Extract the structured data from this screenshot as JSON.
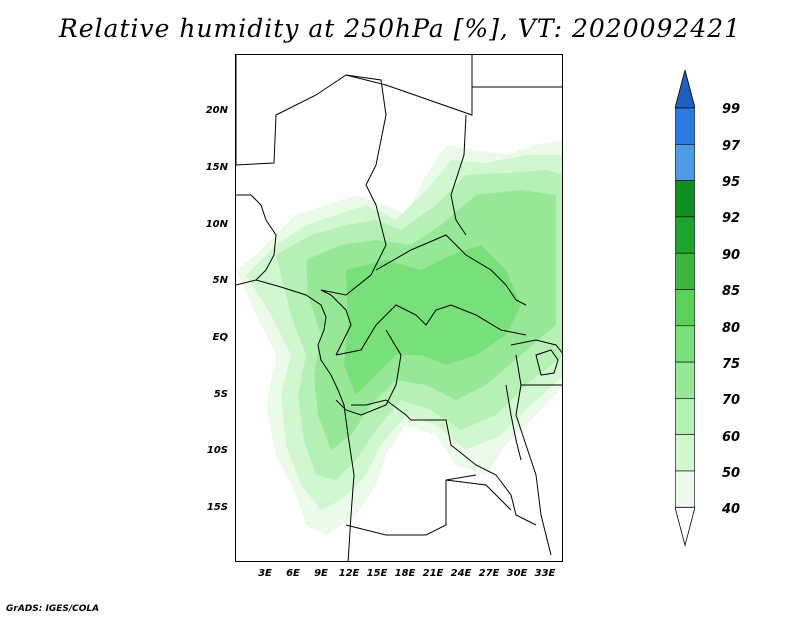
{
  "title": "Relative humidity at 250hPa [%], VT: 2020092421",
  "credit": "GrADS: IGES/COLA",
  "map": {
    "lon_range": [
      0,
      35
    ],
    "lat_range": [
      -20,
      25
    ],
    "lat_labels": [
      "20N",
      "15N",
      "10N",
      "5N",
      "EQ",
      "5S",
      "10S",
      "15S"
    ],
    "lat_values": [
      20,
      15,
      10,
      5,
      0,
      -5,
      -10,
      -15
    ],
    "lon_labels": [
      "3E",
      "6E",
      "9E",
      "12E",
      "15E",
      "18E",
      "21E",
      "24E",
      "27E",
      "30E",
      "33E"
    ],
    "lon_values": [
      3,
      6,
      9,
      12,
      15,
      18,
      21,
      24,
      27,
      30,
      33
    ]
  },
  "legend": {
    "labels": [
      "99",
      "97",
      "95",
      "92",
      "90",
      "85",
      "80",
      "75",
      "70",
      "60",
      "50",
      "40"
    ],
    "colors": {
      "above_99": "#1f5fbf",
      "97_99": "#2a7ae2",
      "95_97": "#4d9be8",
      "92_95": "#0f8f1f",
      "90_92": "#1fa32f",
      "85_90": "#3cb73c",
      "80_85": "#59d159",
      "75_80": "#78e078",
      "70_75": "#96e896",
      "60_70": "#b5f0b5",
      "50_60": "#d0f7d0",
      "40_50": "#eafbe8",
      "below_40": "#ffffff"
    }
  }
}
